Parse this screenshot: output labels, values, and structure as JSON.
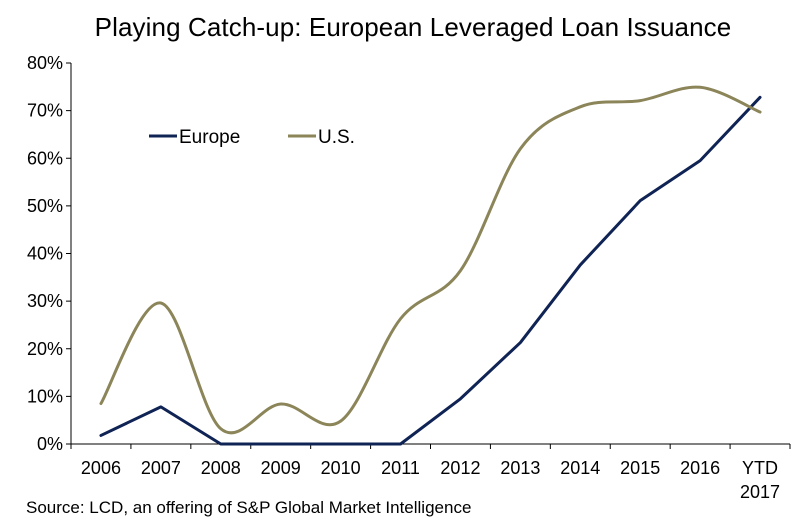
{
  "colors": {
    "europe": "#0f2354",
    "us": "#8b8559",
    "axis": "#000000",
    "background": "#ffffff"
  },
  "chart_data": {
    "type": "line",
    "title": "Playing Catch-up: European Leveraged Loan Issuance",
    "xlabel": "",
    "ylabel": "",
    "categories": [
      "2006",
      "2007",
      "2008",
      "2009",
      "2010",
      "2011",
      "2012",
      "2013",
      "2014",
      "2015",
      "2016",
      "YTD 2017"
    ],
    "y_tick_labels": [
      "0%",
      "10%",
      "20%",
      "30%",
      "40%",
      "50%",
      "60%",
      "70%",
      "80%"
    ],
    "ylim": [
      0,
      80
    ],
    "grid": false,
    "legend_position": "top-left",
    "series": [
      {
        "name": "Europe",
        "color": "#0f2354",
        "values": [
          1.8,
          7.8,
          0,
          0,
          0,
          0,
          9.5,
          21.3,
          37.6,
          51.1,
          59.5,
          72.8
        ]
      },
      {
        "name": "U.S.",
        "color": "#8b8559",
        "values": [
          8.5,
          29.6,
          3.2,
          8.4,
          4.8,
          26.3,
          36.4,
          62.0,
          70.8,
          72.1,
          74.9,
          69.7
        ]
      }
    ]
  },
  "source": "Source: LCD, an offering of S&P Global Market Intelligence"
}
